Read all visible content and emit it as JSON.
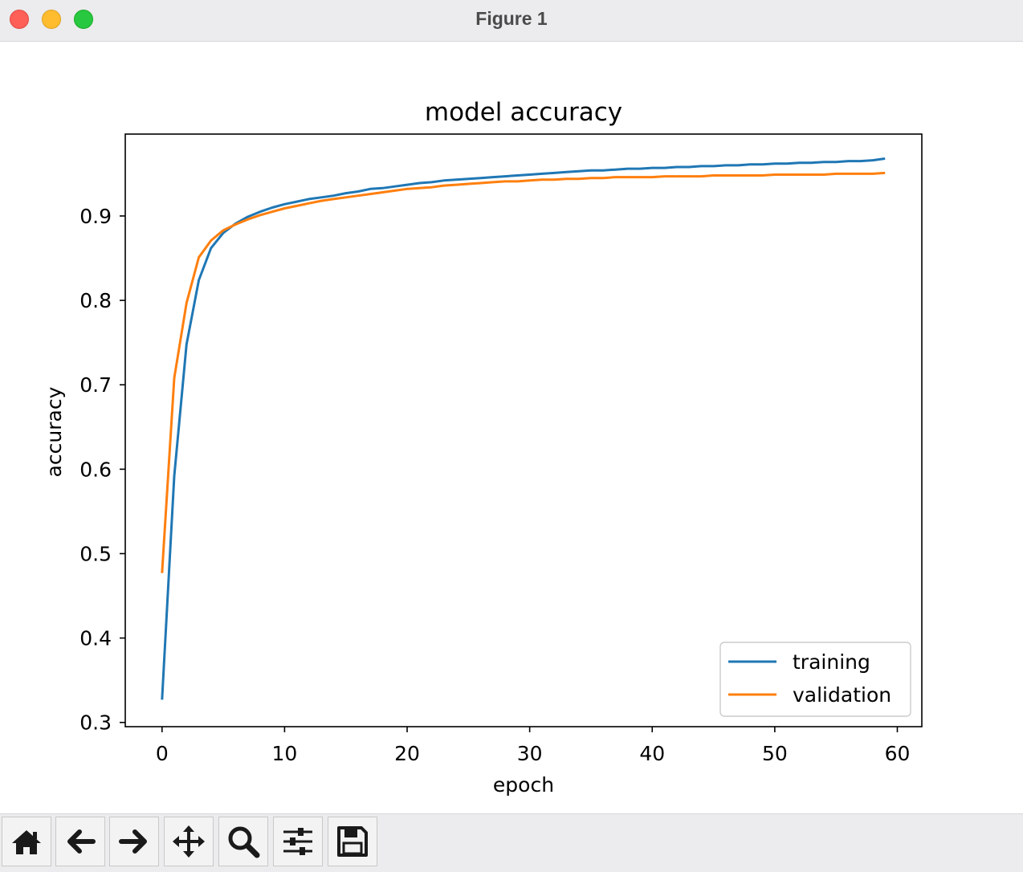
{
  "window": {
    "title": "Figure 1"
  },
  "toolbar": {
    "buttons": [
      {
        "icon": "home-icon"
      },
      {
        "icon": "back-arrow-icon"
      },
      {
        "icon": "forward-arrow-icon"
      },
      {
        "icon": "pan-move-icon"
      },
      {
        "icon": "zoom-magnifier-icon"
      },
      {
        "icon": "configure-sliders-icon"
      },
      {
        "icon": "save-floppy-icon"
      }
    ]
  },
  "colors": {
    "training": "#1f77b4",
    "validation": "#ff7f0e"
  },
  "chart_data": {
    "type": "line",
    "title": "model accuracy",
    "xlabel": "epoch",
    "ylabel": "accuracy",
    "xlim": [
      -3,
      62
    ],
    "ylim": [
      0.295,
      0.997
    ],
    "xticks": [
      0,
      10,
      20,
      30,
      40,
      50,
      60
    ],
    "yticks": [
      0.3,
      0.4,
      0.5,
      0.6,
      0.7,
      0.8,
      0.9
    ],
    "ytick_labels": [
      "0.3",
      "0.4",
      "0.5",
      "0.6",
      "0.7",
      "0.8",
      "0.9"
    ],
    "legend_position": "lower right",
    "series": [
      {
        "name": "training",
        "values": [
          0.327,
          0.592,
          0.748,
          0.824,
          0.862,
          0.88,
          0.891,
          0.899,
          0.905,
          0.91,
          0.914,
          0.917,
          0.92,
          0.922,
          0.924,
          0.927,
          0.929,
          0.932,
          0.933,
          0.935,
          0.937,
          0.939,
          0.94,
          0.942,
          0.943,
          0.944,
          0.945,
          0.946,
          0.947,
          0.948,
          0.949,
          0.95,
          0.951,
          0.952,
          0.953,
          0.954,
          0.954,
          0.955,
          0.956,
          0.956,
          0.957,
          0.957,
          0.958,
          0.958,
          0.959,
          0.959,
          0.96,
          0.96,
          0.961,
          0.961,
          0.962,
          0.962,
          0.963,
          0.963,
          0.964,
          0.964,
          0.965,
          0.965,
          0.966,
          0.968
        ]
      },
      {
        "name": "validation",
        "values": [
          0.477,
          0.708,
          0.797,
          0.851,
          0.871,
          0.883,
          0.89,
          0.896,
          0.901,
          0.905,
          0.909,
          0.912,
          0.915,
          0.918,
          0.92,
          0.922,
          0.924,
          0.926,
          0.928,
          0.93,
          0.932,
          0.933,
          0.934,
          0.936,
          0.937,
          0.938,
          0.939,
          0.94,
          0.941,
          0.941,
          0.942,
          0.943,
          0.943,
          0.944,
          0.944,
          0.945,
          0.945,
          0.946,
          0.946,
          0.946,
          0.946,
          0.947,
          0.947,
          0.947,
          0.947,
          0.948,
          0.948,
          0.948,
          0.948,
          0.948,
          0.949,
          0.949,
          0.949,
          0.949,
          0.949,
          0.95,
          0.95,
          0.95,
          0.95,
          0.951
        ]
      }
    ]
  }
}
